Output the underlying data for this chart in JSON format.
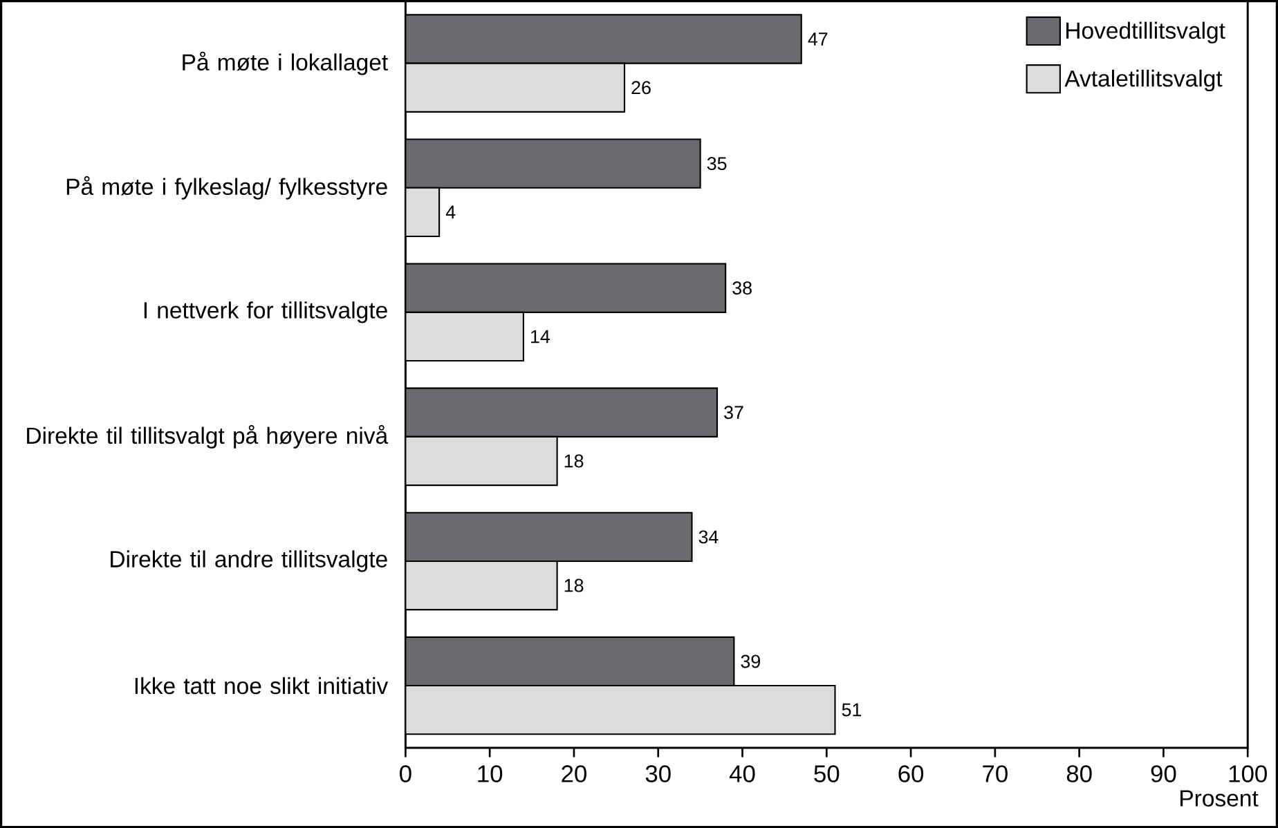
{
  "chart_data": {
    "type": "bar",
    "orientation": "horizontal",
    "xlabel": "Prosent",
    "categories": [
      "På møte i lokallaget",
      "På møte i fylkeslag/ fylkesstyre",
      "I nettverk for tillitsvalgte",
      "Direkte til tillitsvalgt på høyere nivå",
      "Direkte til andre tillitsvalgte",
      "Ikke tatt noe slikt initiativ"
    ],
    "series": [
      {
        "name": "Hovedtillitsvalgt",
        "color": "#6b6b6f",
        "values": [
          47,
          35,
          38,
          37,
          34,
          39
        ]
      },
      {
        "name": "Avtaletillitsvalgt",
        "color": "#dcdcde",
        "values": [
          26,
          4,
          14,
          18,
          18,
          51
        ]
      }
    ],
    "xlim": [
      0,
      100
    ],
    "xticks": [
      0,
      10,
      20,
      30,
      40,
      50,
      60,
      70,
      80,
      90,
      100
    ],
    "data_labels": true,
    "legend": "top right",
    "grid": false
  }
}
